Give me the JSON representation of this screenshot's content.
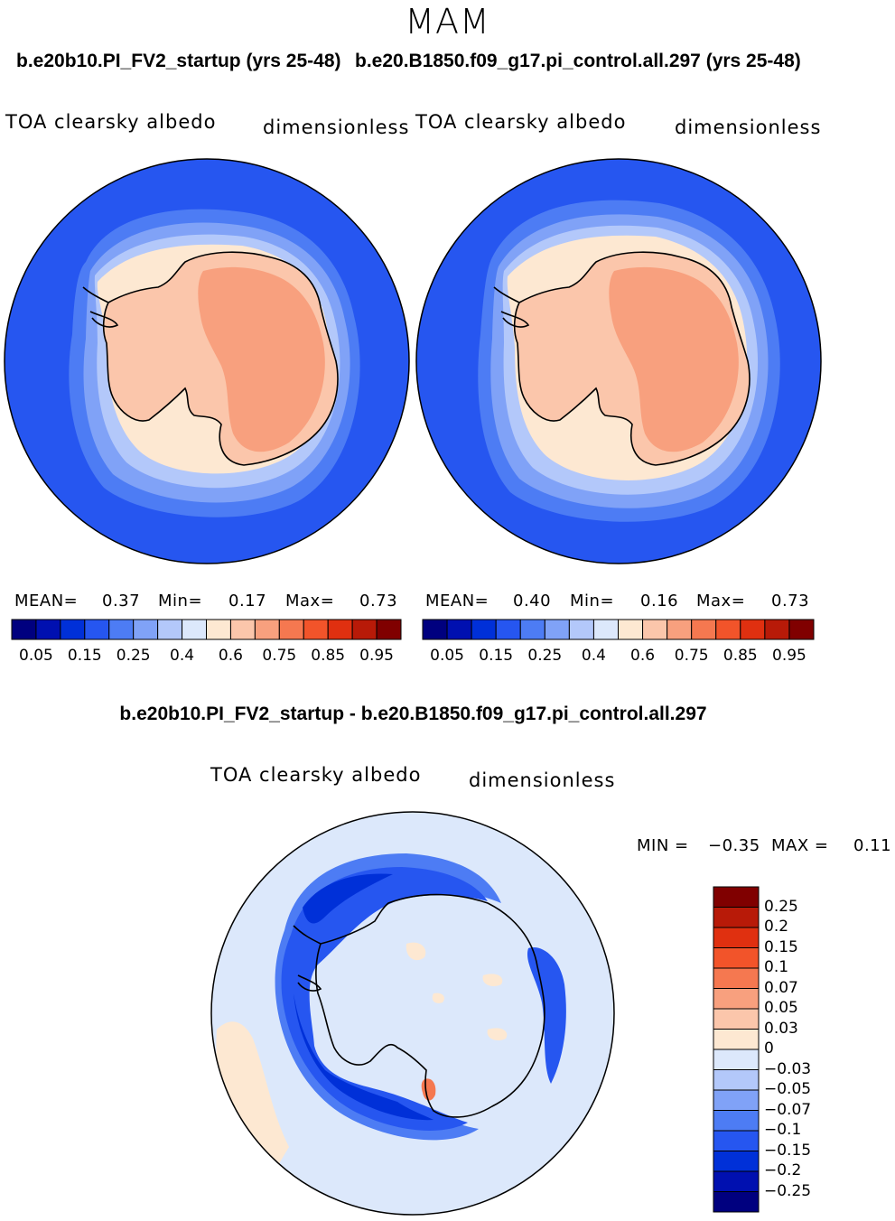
{
  "season": "MAM",
  "left_case": "b.e20b10.PI_FV2_startup (yrs 25-48)",
  "right_case": "b.e20.B1850.f09_g17.pi_control.all.297 (yrs 25-48)",
  "diff_title": "b.e20b10.PI_FV2_startup - b.e20.B1850.f09_g17.pi_control.all.297",
  "variable": "TOA clearsky albedo",
  "units": "dimensionless",
  "panels": [
    {
      "id": "left",
      "mean_label": "MEAN=",
      "mean": "0.37",
      "min_label": "Min=",
      "min": "0.17",
      "max_label": "Max=",
      "max": "0.73"
    },
    {
      "id": "right",
      "mean_label": "MEAN=",
      "mean": "0.40",
      "min_label": "Min=",
      "min": "0.16",
      "max_label": "Max=",
      "max": "0.73"
    }
  ],
  "diff_stats": {
    "min_label": "MIN =",
    "min": "−0.35",
    "max_label": "MAX =",
    "max": "0.11"
  },
  "abs_colorbar": {
    "colors": [
      "#00007f",
      "#0010b0",
      "#0030d8",
      "#2656f0",
      "#4d7cf4",
      "#80a2f7",
      "#b3c8fa",
      "#dce8fb",
      "#fde8d2",
      "#fbc6ab",
      "#f8a07e",
      "#f57850",
      "#f2542a",
      "#e03010",
      "#b81a08",
      "#800000"
    ],
    "ticks": [
      "0.05",
      "0.15",
      "0.25",
      "0.4",
      "0.6",
      "0.75",
      "0.85",
      "0.95"
    ]
  },
  "diff_colorbar": {
    "colors_top_to_bottom": [
      "#800000",
      "#b81a08",
      "#e03010",
      "#f2542a",
      "#f57850",
      "#f8a07e",
      "#fbc6ab",
      "#fde8d2",
      "#dce8fb",
      "#b3c8fa",
      "#80a2f7",
      "#4d7cf4",
      "#2656f0",
      "#0030d8",
      "#0010b0",
      "#00007f"
    ],
    "ticks_top_to_bottom": [
      "0.25",
      "0.2",
      "0.15",
      "0.1",
      "0.07",
      "0.05",
      "0.03",
      "0",
      "−0.03",
      "−0.05",
      "−0.07",
      "−0.1",
      "−0.15",
      "−0.2",
      "−0.25"
    ]
  },
  "map_colors": {
    "ocean_abs": "#2656f0",
    "ocean_diff": "#dce8fb",
    "ice_low": "#fbc6ab",
    "ice_high": "#f8a07e",
    "ring_1": "#4d7cf4",
    "ring_2": "#80a2f7",
    "ring_3": "#b3c8fa",
    "ring_4": "#fde8d2",
    "diff_neg_strong": "#0030d8",
    "diff_neg": "#2656f0",
    "diff_neg_light": "#4d7cf4",
    "diff_pos": "#fde8d2",
    "diff_pos_strong": "#f57850"
  }
}
